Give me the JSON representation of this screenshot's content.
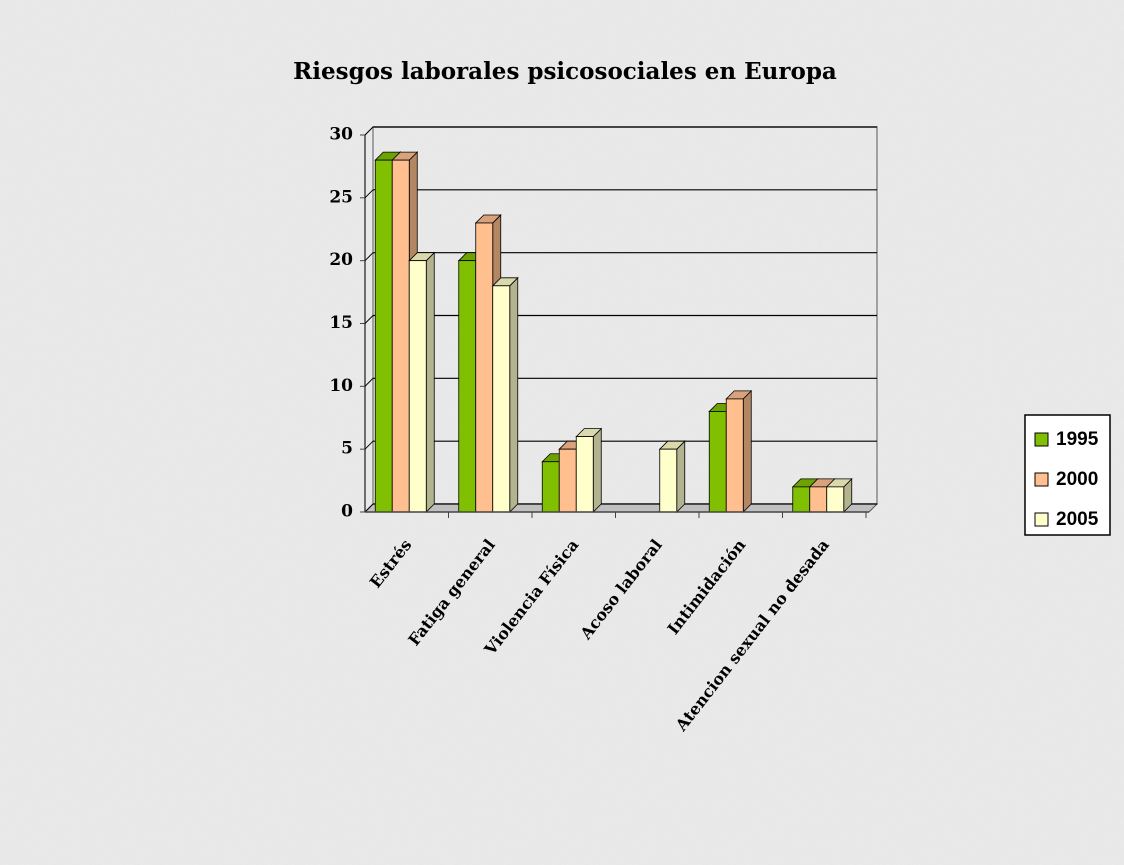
{
  "chart_data": {
    "type": "bar3d",
    "title": "Riesgos laborales psicosociales en Europa",
    "categories": [
      "Estrés",
      "Fatiga general",
      "Violencia Física",
      "Acoso laboral",
      "Intimidación",
      "Atencion sexual no desada"
    ],
    "series": [
      {
        "name": "1995",
        "color": "#80c000",
        "values": [
          28,
          20,
          4,
          0,
          8,
          2
        ]
      },
      {
        "name": "2000",
        "color": "#ffbf8f",
        "values": [
          28,
          23,
          5,
          0,
          9,
          2
        ]
      },
      {
        "name": "2005",
        "color": "#ffffcc",
        "values": [
          20,
          18,
          6,
          5,
          0,
          2
        ]
      }
    ],
    "ylim": [
      0,
      30
    ],
    "yticks": [
      0,
      5,
      10,
      15,
      20,
      25,
      30
    ],
    "grid": true,
    "legend": "right"
  }
}
